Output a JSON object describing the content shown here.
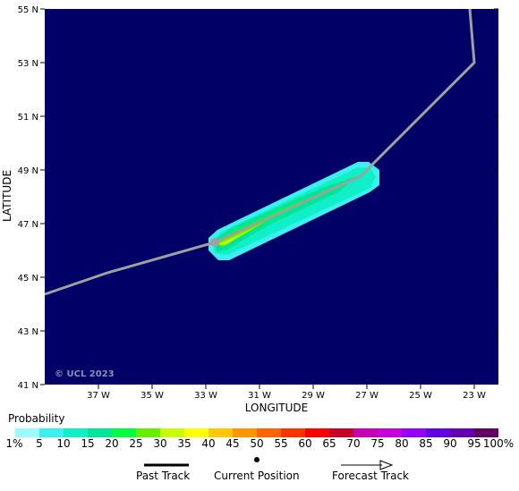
{
  "map": {
    "background_color": "#000066",
    "lat_ticks": [
      "55 N",
      "53 N",
      "51 N",
      "49 N",
      "47 N",
      "45 N",
      "43 N",
      "41 N"
    ],
    "lon_ticks": [
      "37 W",
      "35 W",
      "33 W",
      "31 W",
      "29 W",
      "27 W",
      "25 W",
      "23 W"
    ],
    "y_label": "LATITUDE",
    "x_label": "LONGITUDE",
    "copyright": "© UCL 2023",
    "track_color": "#a0a0a0"
  },
  "legend": {
    "title": "Probability",
    "labels": [
      "1%",
      "5",
      "10",
      "15",
      "20",
      "25",
      "30",
      "35",
      "40",
      "45",
      "50",
      "55",
      "60",
      "65",
      "70",
      "75",
      "80",
      "85",
      "90",
      "95",
      "100%"
    ],
    "colors": [
      "#9bfcff",
      "#3cf0f0",
      "#10f0c8",
      "#00e696",
      "#00ff3c",
      "#64f000",
      "#c8ff00",
      "#ffff00",
      "#ffc800",
      "#ff9600",
      "#ff6400",
      "#ff3200",
      "#ff0000",
      "#c80028",
      "#c800b4",
      "#c800dc",
      "#9600ff",
      "#6400e6",
      "#6400b4",
      "#640064"
    ]
  },
  "track_legend": {
    "past": "Past Track",
    "current": "Current Position",
    "forecast": "Forecast Track"
  }
}
